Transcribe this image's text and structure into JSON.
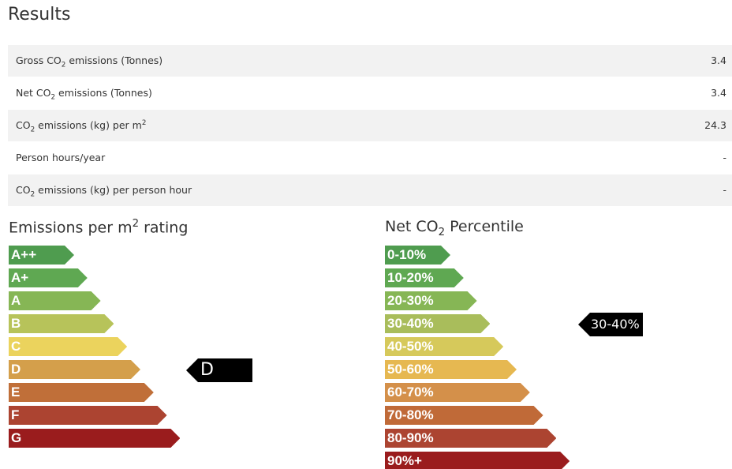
{
  "results": {
    "title": "Results",
    "rows": [
      {
        "label": [
          {
            "t": "Gross CO"
          },
          {
            "sub": "2"
          },
          {
            "t": " emissions (Tonnes)"
          }
        ],
        "value": "3.4"
      },
      {
        "label": [
          {
            "t": "Net CO"
          },
          {
            "sub": "2"
          },
          {
            "t": " emissions (Tonnes)"
          }
        ],
        "value": "3.4"
      },
      {
        "label": [
          {
            "t": "CO"
          },
          {
            "sub": "2"
          },
          {
            "t": " emissions (kg) per m"
          },
          {
            "sup": "2"
          }
        ],
        "value": "24.3"
      },
      {
        "label": [
          {
            "t": "Person hours/year"
          }
        ],
        "value": "-"
      },
      {
        "label": [
          {
            "t": "CO"
          },
          {
            "sub": "2"
          },
          {
            "t": " emissions (kg) per person hour"
          }
        ],
        "value": "-"
      }
    ]
  },
  "rating": {
    "title": [
      {
        "t": "Emissions per m"
      },
      {
        "sup": "2"
      },
      {
        "t": " rating"
      }
    ],
    "levels": [
      {
        "label": "A++",
        "color": "#4f9c4f"
      },
      {
        "label": "A+",
        "color": "#5fa852"
      },
      {
        "label": "A",
        "color": "#86b655"
      },
      {
        "label": "B",
        "color": "#b7c35a"
      },
      {
        "label": "C",
        "color": "#ebd35d"
      },
      {
        "label": "D",
        "color": "#d49f4b"
      },
      {
        "label": "E",
        "color": "#c06f39"
      },
      {
        "label": "F",
        "color": "#ac4431"
      },
      {
        "label": "G",
        "color": "#9a1c1d"
      }
    ],
    "indicator": "D"
  },
  "percentile": {
    "title": [
      {
        "t": "Net CO"
      },
      {
        "sub": "2"
      },
      {
        "t": " Percentile"
      }
    ],
    "levels": [
      {
        "label": "0-10%",
        "color": "#4f9c4f"
      },
      {
        "label": "10-20%",
        "color": "#5fa852"
      },
      {
        "label": "20-30%",
        "color": "#86b655"
      },
      {
        "label": "30-40%",
        "color": "#a9bd5b"
      },
      {
        "label": "40-50%",
        "color": "#d6c95b"
      },
      {
        "label": "50-60%",
        "color": "#e6b851"
      },
      {
        "label": "60-70%",
        "color": "#d4904a"
      },
      {
        "label": "70-80%",
        "color": "#c06a38"
      },
      {
        "label": "80-90%",
        "color": "#ac4431"
      },
      {
        "label": "90%+",
        "color": "#9a1c1d"
      }
    ],
    "indicator": "30-40%"
  }
}
